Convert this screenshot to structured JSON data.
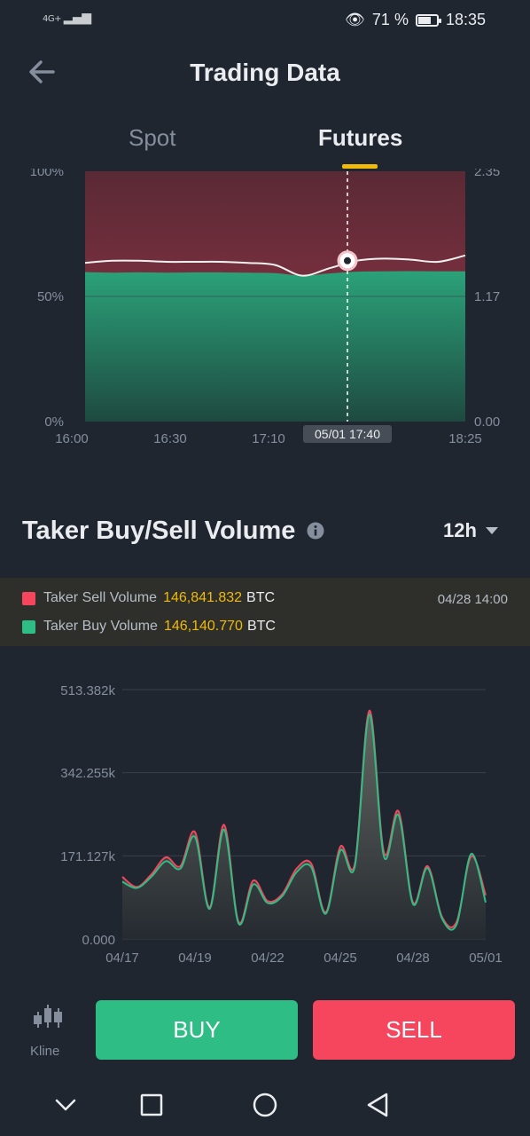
{
  "status_bar": {
    "network": "4G+",
    "battery_percent": "71 %",
    "battery_level": 0.71,
    "time": "18:35"
  },
  "header": {
    "title": "Trading Data",
    "back_icon": "back-arrow-icon"
  },
  "tabs": [
    {
      "label": "Spot",
      "active": false
    },
    {
      "label": "Futures",
      "active": true
    }
  ],
  "ratio_chart": {
    "y_left_ticks": [
      "100%",
      "50%",
      "0%"
    ],
    "y_right_ticks": [
      "2.35",
      "1.17",
      "0.00"
    ],
    "x_ticks": [
      "16:00",
      "16:30",
      "17:10",
      "18:25"
    ],
    "tooltip_date": "05/01 17:40"
  },
  "taker_section": {
    "title": "Taker Buy/Sell Volume",
    "info_icon": "info-icon",
    "interval": "12h",
    "legend": {
      "sell_label": "Taker Sell Volume",
      "sell_value": "146,841.832",
      "sell_unit": "BTC",
      "buy_label": "Taker Buy Volume",
      "buy_value": "146,140.770",
      "buy_unit": "BTC",
      "date": "04/28 14:00"
    }
  },
  "chart_data": [
    {
      "type": "area",
      "y_left_label_ticks": [
        "100%",
        "50%",
        "0%"
      ],
      "y_right_label_ticks": [
        "2.35",
        "1.17",
        "0.00"
      ],
      "x_tick_labels": [
        "16:00",
        "16:30",
        "17:10",
        "18:25"
      ],
      "series": [
        {
          "values": [
            59.7,
            59.5,
            59.6,
            59.5,
            59.6,
            59.6,
            59.5,
            59.3,
            58.3,
            59.2,
            59.9,
            60.0,
            60.1,
            60.0,
            60.0
          ]
        },
        {
          "values": [
            1.49,
            1.51,
            1.51,
            1.5,
            1.5,
            1.5,
            1.49,
            1.47,
            1.37,
            1.44,
            1.51,
            1.53,
            1.52,
            1.5,
            1.56
          ]
        }
      ],
      "ylim_left": [
        0,
        100
      ],
      "ylim_right": [
        0,
        2.35
      ]
    },
    {
      "type": "area",
      "x_tick_labels": [
        "04/17",
        "04/19",
        "04/22",
        "04/25",
        "04/28",
        "05/01"
      ],
      "y_tick_labels": [
        "513.382k",
        "342.255k",
        "171.127k",
        "0.000"
      ],
      "ylim": [
        0,
        513382
      ],
      "series": [
        {
          "name": "Taker Sell Volume",
          "color": "#f6465d",
          "values": [
            128000,
            107000,
            133000,
            168000,
            150000,
            220000,
            65000,
            235000,
            35000,
            120000,
            78000,
            92000,
            145000,
            155000,
            55000,
            190000,
            155000,
            470000,
            178000,
            263000,
            75000,
            150000,
            45000,
            35000,
            170000,
            90000
          ]
        },
        {
          "name": "Taker Buy Volume",
          "color": "#2ebd85",
          "values": [
            118000,
            105000,
            128000,
            160000,
            145000,
            210000,
            62000,
            225000,
            32000,
            112000,
            74000,
            88000,
            138000,
            148000,
            52000,
            182000,
            150000,
            462000,
            170000,
            255000,
            72000,
            146000,
            42000,
            30000,
            175000,
            75000
          ]
        }
      ]
    }
  ],
  "actions": {
    "kline_label": "Kline",
    "kline_icon": "candlestick-icon",
    "buy_label": "BUY",
    "sell_label": "SELL"
  },
  "nav_bar": [
    "chevron-down-icon",
    "square-icon",
    "circle-icon",
    "triangle-back-icon"
  ]
}
